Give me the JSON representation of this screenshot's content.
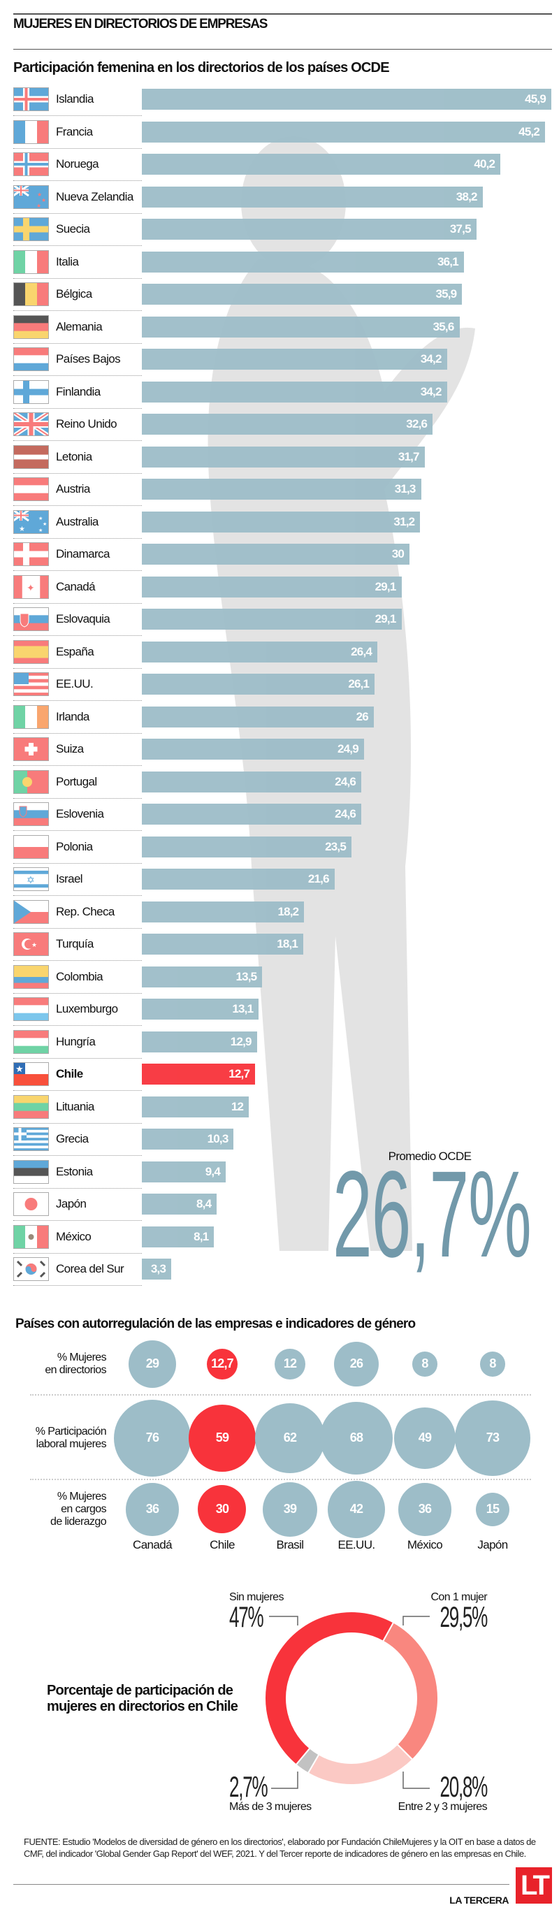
{
  "header": {
    "title": "MUJERES EN DIRECTORIOS DE EMPRESAS"
  },
  "colors": {
    "bar": "#9dbdc8",
    "highlight": "#f8333b",
    "average": "#7299aa"
  },
  "chart_data": [
    {
      "type": "bar",
      "title": "Participación femenina en los directorios de los países OCDE",
      "categories": [
        "Islandia",
        "Francia",
        "Noruega",
        "Nueva Zelandia",
        "Suecia",
        "Italia",
        "Bélgica",
        "Alemania",
        "Países Bajos",
        "Finlandia",
        "Reino Unido",
        "Letonia",
        "Austria",
        "Australia",
        "Dinamarca",
        "Canadá",
        "Eslovaquia",
        "España",
        "EE.UU.",
        "Irlanda",
        "Suiza",
        "Portugal",
        "Eslovenia",
        "Polonia",
        "Israel",
        "Rep. Checa",
        "Turquía",
        "Colombia",
        "Luxemburgo",
        "Hungría",
        "Chile",
        "Lituania",
        "Grecia",
        "Estonia",
        "Japón",
        "México",
        "Corea del Sur"
      ],
      "flags": [
        "is",
        "fr",
        "no",
        "nz",
        "se",
        "it",
        "be",
        "de",
        "nl",
        "fi",
        "gb",
        "lv",
        "at",
        "au",
        "dk",
        "ca",
        "sk",
        "es",
        "us",
        "ie",
        "ch",
        "pt",
        "si",
        "pl",
        "il",
        "cz",
        "tr",
        "co",
        "lu",
        "hu",
        "cl",
        "lt",
        "gr",
        "ee",
        "jp",
        "mx",
        "kr"
      ],
      "values": [
        45.9,
        45.2,
        40.2,
        38.2,
        37.5,
        36.1,
        35.9,
        35.6,
        34.2,
        34.2,
        32.6,
        31.7,
        31.3,
        31.2,
        30,
        29.1,
        29.1,
        26.4,
        26.1,
        26,
        24.9,
        24.6,
        24.6,
        23.5,
        21.6,
        18.2,
        18.1,
        13.5,
        13.1,
        12.9,
        12.7,
        12,
        10.3,
        9.4,
        8.4,
        8.1,
        3.3
      ],
      "value_labels": [
        "45,9",
        "45,2",
        "40,2",
        "38,2",
        "37,5",
        "36,1",
        "35,9",
        "35,6",
        "34,2",
        "34,2",
        "32,6",
        "31,7",
        "31,3",
        "31,2",
        "30",
        "29,1",
        "29,1",
        "26,4",
        "26,1",
        "26",
        "24,9",
        "24,6",
        "24,6",
        "23,5",
        "21,6",
        "18,2",
        "18,1",
        "13,5",
        "13,1",
        "12,9",
        "12,7",
        "12",
        "10,3",
        "9,4",
        "8,4",
        "8,1",
        "3,3"
      ],
      "highlight": "Chile",
      "average": {
        "label": "Promedio OCDE",
        "value": 26.7,
        "display": "26,7%"
      }
    },
    {
      "type": "bubble",
      "title": "Países con autorregulación de las empresas e indicadores de género",
      "countries": [
        "Canadá",
        "Chile",
        "Brasil",
        "EE.UU.",
        "México",
        "Japón"
      ],
      "highlight": "Chile",
      "metrics": [
        {
          "label_lines": [
            "% Mujeres",
            "en directorios"
          ],
          "values": [
            29,
            12.7,
            12,
            26,
            8,
            8
          ],
          "labels": [
            "29",
            "12,7",
            "12",
            "26",
            "8",
            "8"
          ]
        },
        {
          "label_lines": [
            "% Participación",
            "laboral mujeres"
          ],
          "values": [
            76,
            59,
            62,
            68,
            49,
            73
          ],
          "labels": [
            "76",
            "59",
            "62",
            "68",
            "49",
            "73"
          ]
        },
        {
          "label_lines": [
            "% Mujeres",
            "en cargos",
            "de liderazgo"
          ],
          "values": [
            36,
            30,
            39,
            42,
            36,
            15
          ],
          "labels": [
            "36",
            "30",
            "39",
            "42",
            "36",
            "15"
          ]
        }
      ]
    },
    {
      "type": "pie",
      "title_lines": [
        "Porcentaje de participación de",
        "mujeres en directorios en Chile"
      ],
      "slices": [
        {
          "name": "Con 1 mujer",
          "value": 29.5,
          "display": "29,5%",
          "color": "#f9877f"
        },
        {
          "name": "Entre 2 y 3 mujeres",
          "value": 20.8,
          "display": "20,8%",
          "color": "#fbc9c4"
        },
        {
          "name": "Más de 3 mujeres",
          "value": 2.7,
          "display": "2,7%",
          "color": "#c2c2c2"
        },
        {
          "name": "Sin mujeres",
          "value": 47,
          "display": "47%",
          "color": "#f8333b"
        }
      ]
    }
  ],
  "footer": {
    "source": "FUENTE:  Estudio 'Modelos de diversidad de género en los directorios', elaborado por Fundación ChileMujeres y la OIT en base a datos de CMF, del indicador 'Global Gender Gap Report' del WEF, 2021.  Y del Tercer reporte de indicadores de género en las empresas en Chile.",
    "brand": "LA TERCERA",
    "logo": "LT"
  }
}
